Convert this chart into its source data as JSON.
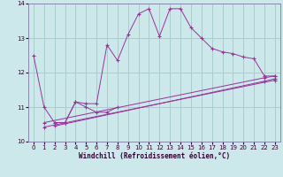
{
  "xlabel": "Windchill (Refroidissement éolien,°C)",
  "background_color": "#cce8eb",
  "grid_color": "#aacccc",
  "line_color": "#993399",
  "xlim": [
    -0.5,
    23.5
  ],
  "ylim": [
    10.0,
    14.0
  ],
  "yticks": [
    10,
    11,
    12,
    13,
    14
  ],
  "xticks": [
    0,
    1,
    2,
    3,
    4,
    5,
    6,
    7,
    8,
    9,
    10,
    11,
    12,
    13,
    14,
    15,
    16,
    17,
    18,
    19,
    20,
    21,
    22,
    23
  ],
  "line1_x": [
    0,
    1,
    2,
    3,
    4,
    5,
    6,
    7,
    8,
    9,
    10,
    11,
    12,
    13,
    14,
    15,
    16,
    17,
    18,
    19,
    20,
    21,
    22,
    23
  ],
  "line1_y": [
    12.5,
    11.0,
    10.55,
    10.55,
    11.15,
    11.1,
    11.1,
    12.8,
    12.35,
    13.1,
    13.7,
    13.85,
    13.05,
    13.85,
    13.85,
    13.3,
    13.0,
    12.7,
    12.6,
    12.55,
    12.45,
    12.4,
    11.9,
    11.9
  ],
  "line2_x": [
    2,
    3,
    4,
    5,
    6,
    7,
    8
  ],
  "line2_y": [
    10.55,
    10.55,
    11.15,
    11.0,
    10.85,
    10.85,
    11.0
  ],
  "line3_x": [
    1,
    22,
    23
  ],
  "line3_y": [
    10.55,
    11.85,
    11.9
  ],
  "line4_x": [
    2,
    22,
    23
  ],
  "line4_y": [
    10.45,
    11.75,
    11.82
  ],
  "line5_x": [
    1,
    23
  ],
  "line5_y": [
    10.42,
    11.78
  ]
}
